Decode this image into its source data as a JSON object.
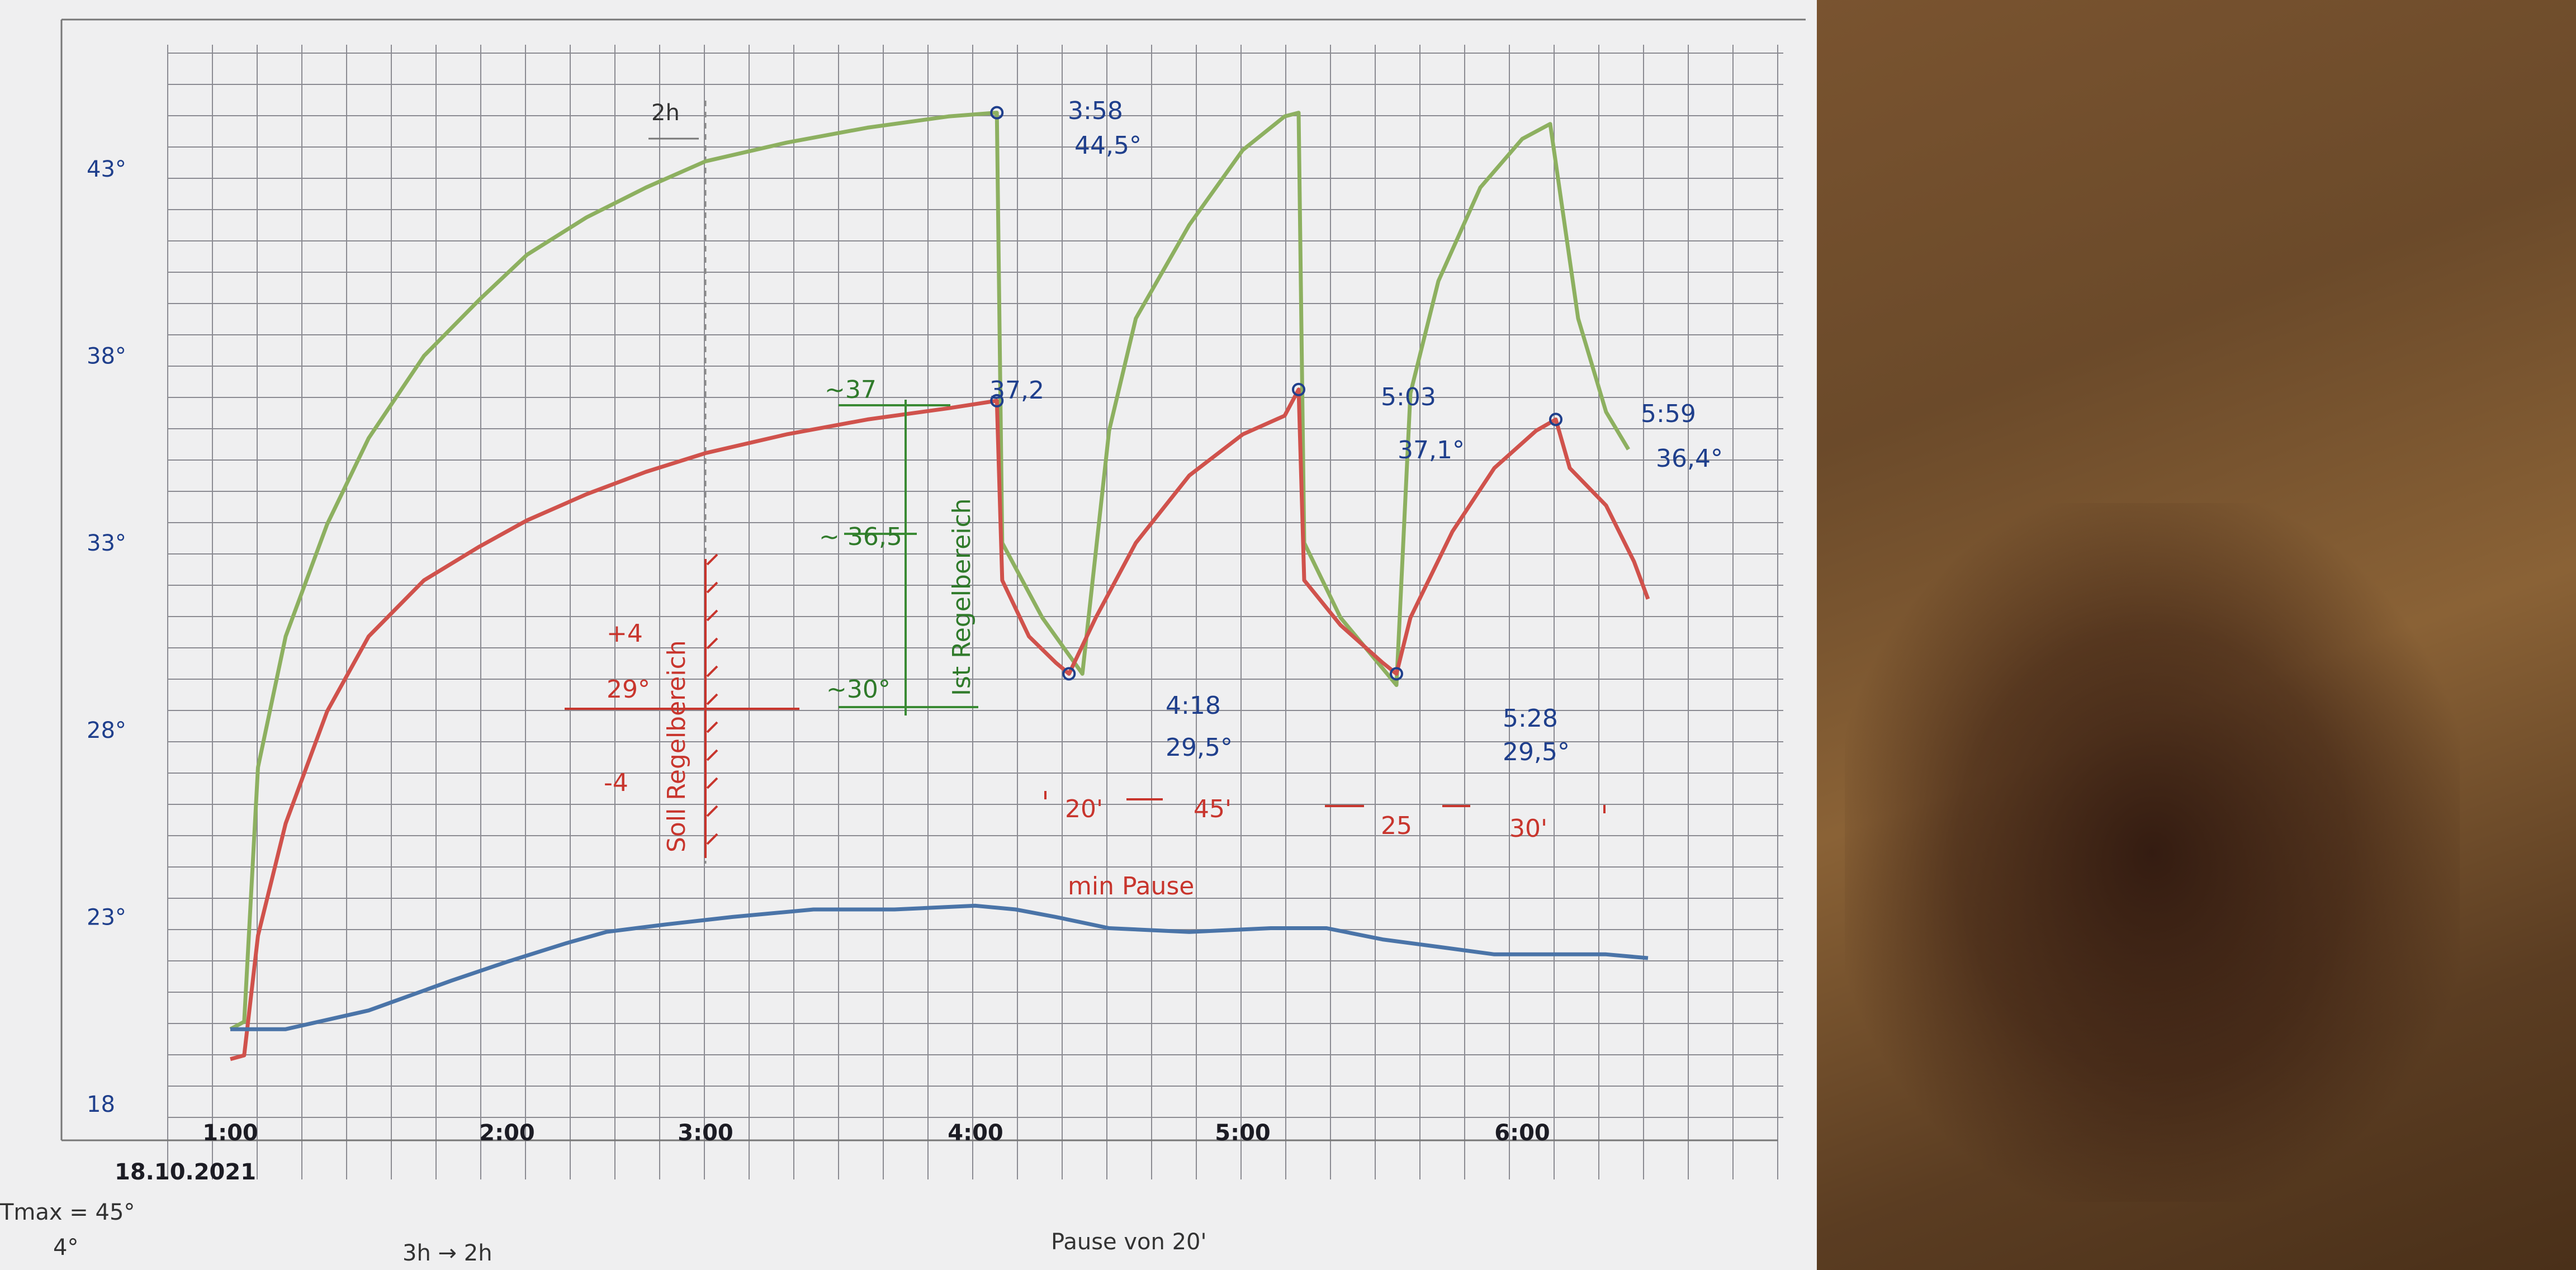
{
  "chart_data": {
    "type": "line",
    "date_label": "18.10.2021",
    "x_ticks": [
      "1:00",
      "2:00",
      "3:00",
      "4:00",
      "5:00",
      "6:00"
    ],
    "y_ticks": [
      "18",
      "23°",
      "28°",
      "33°",
      "38°",
      "43°"
    ],
    "xlim": [
      0.9,
      6.7
    ],
    "ylim": [
      18,
      45.5
    ],
    "series": [
      {
        "color": "#8db060",
        "points": [
          [
            1.0,
            20.0
          ],
          [
            1.05,
            20.2
          ],
          [
            1.1,
            27.0
          ],
          [
            1.2,
            30.5
          ],
          [
            1.35,
            33.5
          ],
          [
            1.5,
            35.8
          ],
          [
            1.7,
            38.0
          ],
          [
            1.9,
            39.5
          ],
          [
            2.1,
            40.7
          ],
          [
            2.4,
            41.7
          ],
          [
            2.7,
            42.5
          ],
          [
            3.0,
            43.2
          ],
          [
            3.3,
            43.7
          ],
          [
            3.6,
            44.1
          ],
          [
            3.9,
            44.4
          ],
          [
            4.08,
            44.5
          ],
          [
            4.1,
            33.0
          ],
          [
            4.25,
            31.0
          ],
          [
            4.4,
            29.5
          ],
          [
            4.5,
            36.0
          ],
          [
            4.6,
            39.0
          ],
          [
            4.8,
            41.5
          ],
          [
            5.0,
            43.5
          ],
          [
            5.15,
            44.4
          ],
          [
            5.2,
            44.5
          ],
          [
            5.22,
            33.0
          ],
          [
            5.35,
            31.0
          ],
          [
            5.55,
            29.2
          ],
          [
            5.6,
            37.0
          ],
          [
            5.7,
            40.0
          ],
          [
            5.85,
            42.5
          ],
          [
            6.0,
            43.8
          ],
          [
            6.1,
            44.2
          ],
          [
            6.2,
            39.0
          ],
          [
            6.3,
            36.5
          ],
          [
            6.38,
            35.5
          ]
        ]
      },
      {
        "color": "#d0524c",
        "points": [
          [
            1.0,
            19.2
          ],
          [
            1.05,
            19.3
          ],
          [
            1.1,
            22.5
          ],
          [
            1.2,
            25.5
          ],
          [
            1.35,
            28.5
          ],
          [
            1.5,
            30.5
          ],
          [
            1.7,
            32.0
          ],
          [
            1.9,
            32.9
          ],
          [
            2.1,
            33.6
          ],
          [
            2.4,
            34.3
          ],
          [
            2.7,
            34.9
          ],
          [
            3.0,
            35.4
          ],
          [
            3.3,
            35.9
          ],
          [
            3.6,
            36.3
          ],
          [
            3.9,
            36.6
          ],
          [
            4.08,
            36.8
          ],
          [
            4.1,
            32.0
          ],
          [
            4.2,
            30.5
          ],
          [
            4.3,
            29.8
          ],
          [
            4.35,
            29.5
          ],
          [
            4.45,
            31.0
          ],
          [
            4.6,
            33.0
          ],
          [
            4.8,
            34.8
          ],
          [
            5.0,
            35.9
          ],
          [
            5.15,
            36.4
          ],
          [
            5.2,
            37.1
          ],
          [
            5.22,
            32.0
          ],
          [
            5.35,
            30.8
          ],
          [
            5.5,
            29.8
          ],
          [
            5.55,
            29.5
          ],
          [
            5.6,
            31.0
          ],
          [
            5.75,
            33.3
          ],
          [
            5.9,
            35.0
          ],
          [
            6.05,
            36.0
          ],
          [
            6.12,
            36.3
          ],
          [
            6.17,
            35.0
          ],
          [
            6.3,
            34.0
          ],
          [
            6.4,
            32.5
          ],
          [
            6.45,
            31.5
          ]
        ]
      },
      {
        "color": "#4a74a8",
        "points": [
          [
            1.0,
            20.0
          ],
          [
            1.2,
            20.0
          ],
          [
            1.5,
            20.5
          ],
          [
            1.8,
            21.3
          ],
          [
            2.0,
            21.8
          ],
          [
            2.3,
            22.3
          ],
          [
            2.5,
            22.6
          ],
          [
            2.8,
            22.8
          ],
          [
            3.1,
            23.0
          ],
          [
            3.4,
            23.2
          ],
          [
            3.7,
            23.2
          ],
          [
            4.0,
            23.3
          ],
          [
            4.15,
            23.2
          ],
          [
            4.3,
            23.0
          ],
          [
            4.5,
            22.7
          ],
          [
            4.8,
            22.6
          ],
          [
            5.1,
            22.7
          ],
          [
            5.3,
            22.7
          ],
          [
            5.5,
            22.4
          ],
          [
            5.7,
            22.2
          ],
          [
            5.9,
            22.0
          ],
          [
            6.1,
            22.0
          ],
          [
            6.3,
            22.0
          ],
          [
            6.45,
            21.9
          ]
        ]
      }
    ]
  },
  "annotations": {
    "peak1_time": "3:58",
    "peak1_value": "44,5°",
    "peak1_red": "37,2",
    "trough1_time": "4:18",
    "trough1_value": "29,5°",
    "peak2_time": "5:03",
    "peak2_value": "37,1°",
    "trough2_time": "5:28",
    "trough2_value": "29,5°",
    "peak3_time": "5:59",
    "peak3_value": "36,4°",
    "ist_label": "Ist Regelbereich",
    "ist_top": "~37",
    "ist_mid": "~ 36,5",
    "ist_bottom": "~30°",
    "soll_label": "Soll Regelbereich",
    "soll_plus": "+4",
    "soll_center": "29°",
    "soll_minus": "-4",
    "pause_20": "20'",
    "pause_45": "45'",
    "pause_25": "25",
    "pause_30": "30'",
    "min_pause": "min Pause",
    "arrow_2h": "2h"
  },
  "bottom_notes": {
    "tmax": "Tmax = 45°",
    "four": "4°",
    "hours": "3h → 2h",
    "pause": "Pause von 20'"
  }
}
